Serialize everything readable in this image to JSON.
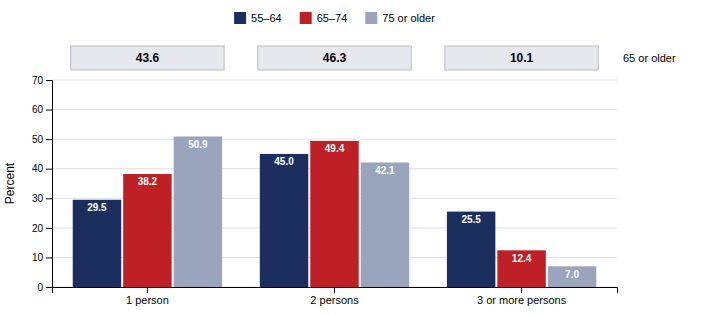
{
  "chart_data": {
    "type": "bar",
    "categories": [
      "1 person",
      "2 persons",
      "3 or more persons"
    ],
    "series": [
      {
        "name": "55–64",
        "color": "#1b2f5e",
        "values": [
          29.5,
          45.0,
          25.5
        ],
        "value_labels": [
          "29.5",
          "45.0",
          "25.5"
        ]
      },
      {
        "name": "65–74",
        "color": "#be2026",
        "values": [
          38.2,
          49.4,
          12.4
        ],
        "value_labels": [
          "38.2",
          "49.4",
          "12.4"
        ]
      },
      {
        "name": "75 or older",
        "color": "#9aa4bc",
        "values": [
          50.9,
          42.1,
          7.0
        ],
        "value_labels": [
          "50.9",
          "42.1",
          "7.0"
        ]
      }
    ],
    "table": {
      "label": "65 or older",
      "values": [
        43.6,
        46.3,
        10.1
      ]
    },
    "ylabel": "Percent",
    "ylim": [
      0,
      70
    ],
    "yticks": [
      0,
      10,
      20,
      30,
      40,
      50,
      60,
      70
    ],
    "grid": true,
    "data_labels": true,
    "legend": "top"
  }
}
